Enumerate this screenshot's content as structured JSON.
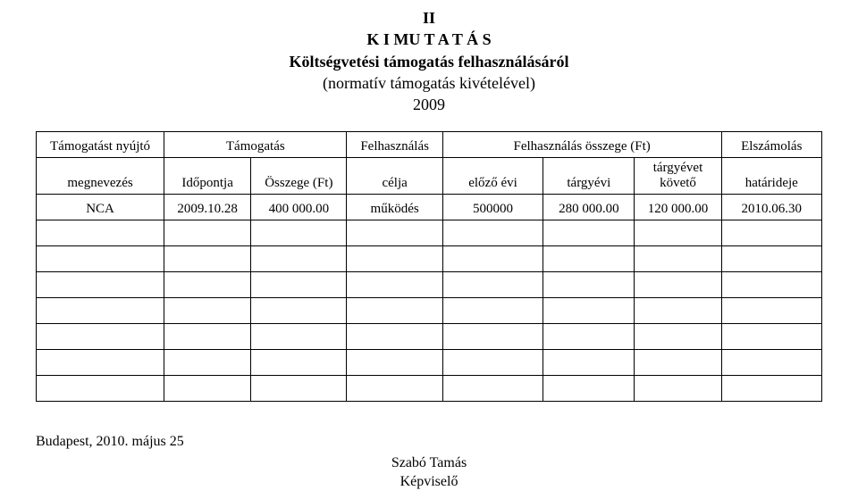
{
  "header": {
    "line1": "II",
    "line2": "K I MU T A T Á S",
    "line3": "Költségvetési támogatás felhasználásáról",
    "subline": "(normatív támogatás kivételével)",
    "year": "2009"
  },
  "columns": {
    "c1_top": "Támogatást nyújtó",
    "c1_bottom": "megnevezés",
    "grp_tamogatas": "Támogatás",
    "c2_bottom": "Időpontja",
    "c3_bottom": "Összege (Ft)",
    "c4_top": "Felhasználás",
    "c4_bottom": "célja",
    "grp_osszeg": "Felhasználás összege (Ft)",
    "c5_bottom": "előző évi",
    "c6_bottom": "tárgyévi",
    "c7_bottom": "tárgyévet követő",
    "c8_top": "Elszámolás",
    "c8_bottom": "határideje"
  },
  "rows": [
    {
      "megnevezes": "NCA",
      "idopont": "2009.10.28",
      "osszeg": "400 000.00",
      "cel": "működés",
      "elozo": "500000",
      "targyevi": "280 000.00",
      "koveto": "120 000.00",
      "hatarido": "2010.06.30"
    }
  ],
  "empty_row_count": 7,
  "footer": {
    "left": "Budapest, 2010. május 25",
    "name": "Szabó Tamás",
    "title": "Képviselő"
  },
  "style": {
    "font_family": "Times New Roman",
    "title_fontsize_pt": 18,
    "body_fontsize_pt": 15,
    "border_color": "#000000",
    "background_color": "#ffffff",
    "text_color": "#000000"
  }
}
